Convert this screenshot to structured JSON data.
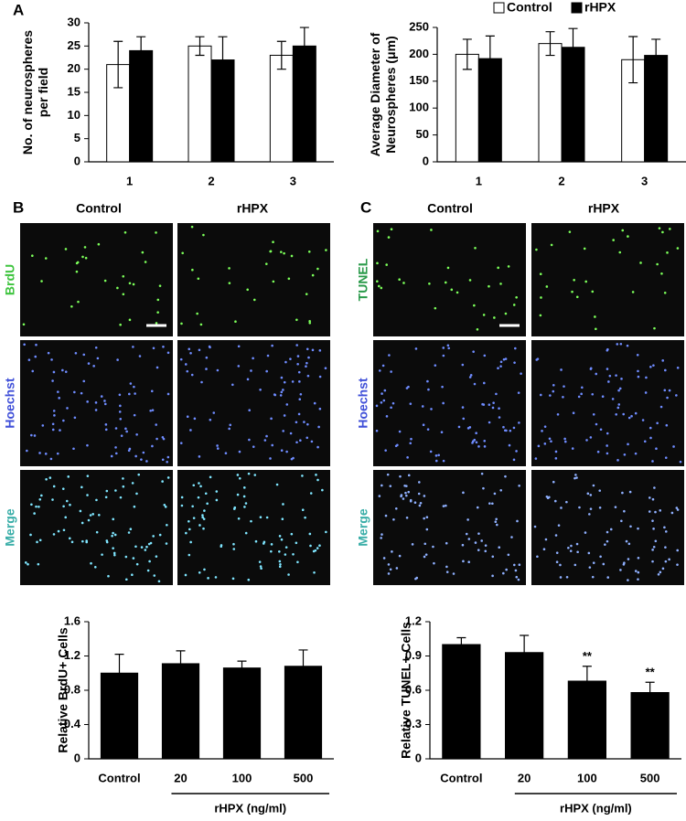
{
  "panel_letters": [
    "A",
    "B",
    "C"
  ],
  "micrographs": [
    {
      "columns": [
        "Control",
        "rHPX"
      ],
      "rows": [
        "BrdU",
        "Hoechst",
        "Merge"
      ]
    },
    {
      "columns": [
        "Control",
        "rHPX"
      ],
      "rows": [
        "TUNEL",
        "Hoechst",
        "Merge"
      ]
    }
  ],
  "chart_data": [
    {
      "type": "bar",
      "ylabel": [
        "No. of neurospheres",
        "per field"
      ],
      "categories": [
        "1",
        "2",
        "3"
      ],
      "series": [
        {
          "color": "#ffffff",
          "values": [
            21,
            25,
            23
          ],
          "errors": [
            5,
            2,
            3
          ]
        },
        {
          "color": "#000000",
          "values": [
            24,
            22,
            25
          ],
          "errors": [
            3,
            5,
            4
          ]
        }
      ],
      "ylim": [
        0,
        30
      ],
      "yticks": [
        0,
        5,
        10,
        15,
        20,
        25,
        30
      ]
    },
    {
      "type": "bar",
      "ylabel": [
        "Average Diameter of",
        "Neurospheres (μm)"
      ],
      "categories": [
        "1",
        "2",
        "3"
      ],
      "series": [
        {
          "name": "Control",
          "color": "#ffffff",
          "values": [
            200,
            220,
            190
          ],
          "errors": [
            28,
            22,
            43
          ]
        },
        {
          "name": "rHPX",
          "color": "#000000",
          "values": [
            192,
            213,
            198
          ],
          "errors": [
            42,
            35,
            30
          ]
        }
      ],
      "ylim": [
        0,
        250
      ],
      "yticks": [
        0,
        50,
        100,
        150,
        200,
        250
      ],
      "legend": "top-right"
    },
    {
      "type": "bar",
      "ylabel": [
        "Relative BrdU+ Cells"
      ],
      "xlabel": "rHPX (ng/ml)",
      "categories": [
        "Control",
        "20",
        "100",
        "500"
      ],
      "series": [
        {
          "color": "#000000",
          "values": [
            1.0,
            1.11,
            1.06,
            1.08
          ],
          "errors": [
            0.22,
            0.15,
            0.08,
            0.19
          ]
        }
      ],
      "ylim": [
        0,
        1.6
      ],
      "yticks": [
        0,
        0.4,
        0.8,
        1.2,
        1.6
      ]
    },
    {
      "type": "bar",
      "ylabel": [
        "Relative TUNEL+ Cells"
      ],
      "xlabel": "rHPX (ng/ml)",
      "categories": [
        "Control",
        "20",
        "100",
        "500"
      ],
      "series": [
        {
          "color": "#000000",
          "values": [
            1.0,
            0.93,
            0.68,
            0.58
          ],
          "errors": [
            0.06,
            0.15,
            0.13,
            0.09
          ]
        }
      ],
      "significance": [
        null,
        null,
        "**",
        "**"
      ],
      "ylim": [
        0,
        1.2
      ],
      "yticks": [
        0,
        0.3,
        0.6,
        0.9,
        1.2
      ]
    }
  ]
}
